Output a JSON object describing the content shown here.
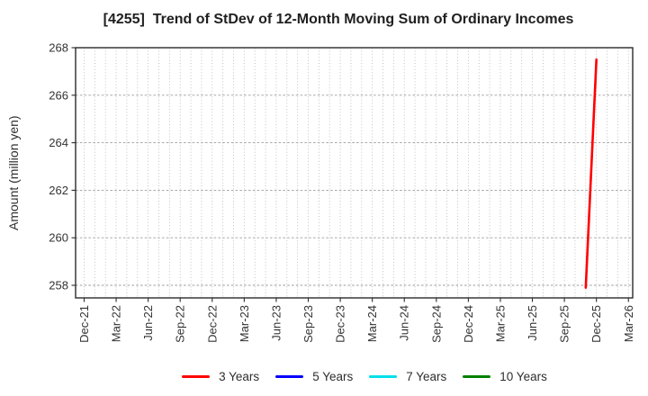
{
  "chart_data": {
    "type": "line",
    "title": "[4255]  Trend of StDev of 12-Month Moving Sum of Ordinary Incomes",
    "ylabel": "Amount (million yen)",
    "xlabel": "",
    "x_tick_labels": [
      "Dec-21",
      "Mar-22",
      "Jun-22",
      "Sep-22",
      "Dec-22",
      "Mar-23",
      "Jun-23",
      "Sep-23",
      "Dec-23",
      "Mar-24",
      "Jun-24",
      "Sep-24",
      "Dec-24",
      "Mar-25",
      "Jun-25",
      "Sep-25",
      "Dec-25",
      "Mar-26"
    ],
    "x_months_per_tick": 3,
    "x_total_months": 51,
    "xlim_months": [
      -0.8,
      51.4
    ],
    "yticks": [
      258,
      260,
      262,
      264,
      266,
      268
    ],
    "ylim": [
      257.47,
      268
    ],
    "grid": {
      "vertical_interval": "monthly",
      "vertical_style": "dotted",
      "vertical_color": "#b3b3b3",
      "horizontal_style": "dashed",
      "horizontal_color": "#9e9e9e"
    },
    "axis_color": "#2b2b2b",
    "tick_label_color": "#333333",
    "legend_position": "bottom-center",
    "series": [
      {
        "name": "3 Years",
        "color": "#ff0000",
        "points": [
          {
            "month": "Nov-25",
            "month_index": 47,
            "value": 257.9
          },
          {
            "month": "Dec-25",
            "month_index": 48,
            "value": 267.5
          }
        ]
      },
      {
        "name": "5 Years",
        "color": "#0000ff",
        "points": []
      },
      {
        "name": "7 Years",
        "color": "#00e0e8",
        "points": []
      },
      {
        "name": "10 Years",
        "color": "#008000",
        "points": []
      }
    ]
  }
}
